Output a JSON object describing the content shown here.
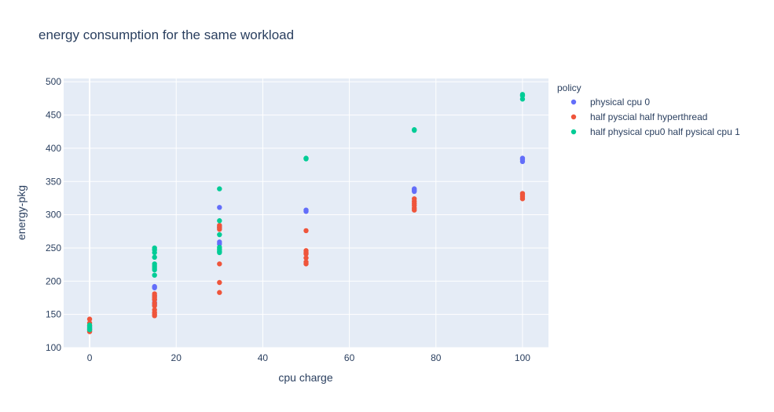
{
  "chart_data": {
    "type": "scatter",
    "title": "energy consumption for the same workload",
    "xlabel": "cpu charge",
    "ylabel": "energy-pkg",
    "xlim": [
      -6,
      106
    ],
    "ylim": [
      100,
      505
    ],
    "xticks": [
      0,
      20,
      40,
      60,
      80,
      100
    ],
    "yticks": [
      100,
      150,
      200,
      250,
      300,
      350,
      400,
      450,
      500
    ],
    "grid": true,
    "legend_title": "policy",
    "legend_position": "right",
    "series": [
      {
        "name": "physical cpu 0",
        "color": "#636efa",
        "points": [
          [
            0,
            125
          ],
          [
            0,
            128
          ],
          [
            0,
            130
          ],
          [
            0,
            132
          ],
          [
            15,
            192
          ],
          [
            15,
            190
          ],
          [
            15,
            178
          ],
          [
            15,
            172
          ],
          [
            15,
            168
          ],
          [
            15,
            165
          ],
          [
            30,
            311
          ],
          [
            30,
            282
          ],
          [
            30,
            280
          ],
          [
            30,
            259
          ],
          [
            30,
            256
          ],
          [
            50,
            307
          ],
          [
            50,
            305
          ],
          [
            75,
            339
          ],
          [
            75,
            337
          ],
          [
            75,
            335
          ],
          [
            100,
            385
          ],
          [
            100,
            383
          ],
          [
            100,
            380
          ]
        ]
      },
      {
        "name": "half pyscial half hyperthread",
        "color": "#ef553b",
        "points": [
          [
            0,
            143
          ],
          [
            0,
            137
          ],
          [
            0,
            133
          ],
          [
            0,
            127
          ],
          [
            0,
            124
          ],
          [
            15,
            181
          ],
          [
            15,
            178
          ],
          [
            15,
            175
          ],
          [
            15,
            172
          ],
          [
            15,
            167
          ],
          [
            15,
            163
          ],
          [
            15,
            157
          ],
          [
            15,
            153
          ],
          [
            15,
            150
          ],
          [
            15,
            148
          ],
          [
            30,
            284
          ],
          [
            30,
            281
          ],
          [
            30,
            278
          ],
          [
            30,
            226
          ],
          [
            30,
            198
          ],
          [
            30,
            183
          ],
          [
            50,
            276
          ],
          [
            50,
            246
          ],
          [
            50,
            243
          ],
          [
            50,
            241
          ],
          [
            50,
            235
          ],
          [
            50,
            229
          ],
          [
            50,
            226
          ],
          [
            75,
            324
          ],
          [
            75,
            320
          ],
          [
            75,
            317
          ],
          [
            75,
            314
          ],
          [
            75,
            310
          ],
          [
            75,
            307
          ],
          [
            100,
            332
          ],
          [
            100,
            330
          ],
          [
            100,
            327
          ],
          [
            100,
            324
          ]
        ]
      },
      {
        "name": "half physical cpu0 half pysical cpu 1",
        "color": "#00cc96",
        "points": [
          [
            0,
            134
          ],
          [
            0,
            131
          ],
          [
            0,
            129
          ],
          [
            0,
            127
          ],
          [
            15,
            250
          ],
          [
            15,
            247
          ],
          [
            15,
            243
          ],
          [
            15,
            236
          ],
          [
            15,
            226
          ],
          [
            15,
            223
          ],
          [
            15,
            220
          ],
          [
            15,
            217
          ],
          [
            15,
            209
          ],
          [
            30,
            339
          ],
          [
            30,
            291
          ],
          [
            30,
            270
          ],
          [
            30,
            251
          ],
          [
            30,
            248
          ],
          [
            30,
            245
          ],
          [
            30,
            243
          ],
          [
            50,
            385
          ],
          [
            50,
            384
          ],
          [
            75,
            428
          ],
          [
            75,
            427
          ],
          [
            100,
            481
          ],
          [
            100,
            479
          ],
          [
            100,
            474
          ]
        ]
      }
    ]
  }
}
